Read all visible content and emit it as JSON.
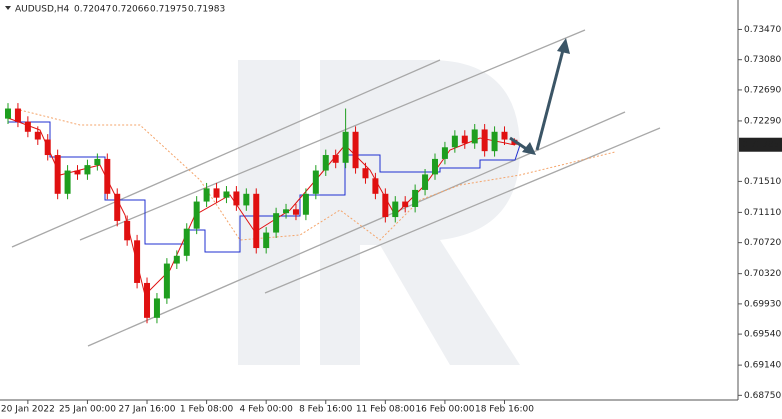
{
  "chart_data": {
    "type": "candlestick",
    "title": "AUDUSD,H4",
    "categories": [
      null,
      null,
      "20 Jan 2022",
      null,
      null,
      null,
      null,
      null,
      "25 Jan 00:00",
      null,
      null,
      null,
      null,
      null,
      "27 Jan 16:00",
      null,
      null,
      null,
      null,
      null,
      "1 Feb 08:00",
      null,
      null,
      null,
      null,
      null,
      "4 Feb 00:00",
      null,
      null,
      null,
      null,
      null,
      "8 Feb 16:00",
      null,
      null,
      null,
      null,
      null,
      "11 Feb 08:00",
      null,
      null,
      null,
      null,
      null,
      "16 Feb 00:00",
      null,
      null,
      null,
      null,
      null,
      "18 Feb 16:00",
      null
    ],
    "open": [
      0.7232,
      0.7245,
      0.7228,
      0.7215,
      0.7205,
      0.7185,
      0.7135,
      0.7165,
      0.716,
      0.7172,
      0.718,
      0.7135,
      0.71,
      0.7075,
      0.702,
      0.6975,
      0.7,
      0.7045,
      0.7055,
      0.709,
      0.7125,
      0.7142,
      0.713,
      0.7138,
      0.712,
      0.7135,
      0.7065,
      0.7085,
      0.711,
      0.7115,
      0.7108,
      0.7135,
      0.7165,
      0.7185,
      0.7175,
      0.7215,
      0.7168,
      0.7155,
      0.7135,
      0.7105,
      0.7125,
      0.7118,
      0.714,
      0.716,
      0.718,
      0.7195,
      0.721,
      0.72,
      0.7218,
      0.719,
      0.7215,
      0.72047
    ],
    "high": [
      0.7252,
      0.7252,
      0.7235,
      0.7222,
      0.7212,
      0.7192,
      0.7172,
      0.7172,
      0.7179,
      0.7187,
      0.7187,
      0.7142,
      0.7107,
      0.7082,
      0.7027,
      0.7007,
      0.7052,
      0.7062,
      0.7097,
      0.7132,
      0.7149,
      0.7149,
      0.7145,
      0.7145,
      0.7142,
      0.7142,
      0.7092,
      0.7117,
      0.7122,
      0.7122,
      0.7142,
      0.7172,
      0.7192,
      0.7192,
      0.7245,
      0.7222,
      0.7175,
      0.7162,
      0.7142,
      0.7132,
      0.7132,
      0.7147,
      0.7167,
      0.7187,
      0.7202,
      0.7217,
      0.7217,
      0.7225,
      0.7225,
      0.7222,
      0.7222,
      0.72066
    ],
    "low": [
      0.7225,
      0.7221,
      0.7208,
      0.7198,
      0.7178,
      0.7128,
      0.7128,
      0.7153,
      0.7153,
      0.7165,
      0.7128,
      0.7093,
      0.7068,
      0.7013,
      0.6968,
      0.6968,
      0.6993,
      0.7038,
      0.7048,
      0.7083,
      0.7118,
      0.7123,
      0.7123,
      0.7113,
      0.7113,
      0.7058,
      0.7058,
      0.7078,
      0.7103,
      0.7101,
      0.7101,
      0.7128,
      0.7158,
      0.7168,
      0.7168,
      0.7161,
      0.7148,
      0.7128,
      0.7098,
      0.7098,
      0.7111,
      0.7111,
      0.7133,
      0.7153,
      0.7173,
      0.7188,
      0.7193,
      0.7193,
      0.7183,
      0.7183,
      0.7198,
      0.71975
    ],
    "close": [
      0.7245,
      0.7228,
      0.7215,
      0.7205,
      0.7185,
      0.7135,
      0.7165,
      0.716,
      0.7172,
      0.718,
      0.7135,
      0.71,
      0.7075,
      0.702,
      0.6975,
      0.7,
      0.7045,
      0.7055,
      0.709,
      0.7125,
      0.7142,
      0.713,
      0.7138,
      0.712,
      0.7135,
      0.7065,
      0.7085,
      0.711,
      0.7115,
      0.7108,
      0.7135,
      0.7165,
      0.7185,
      0.7175,
      0.7215,
      0.7168,
      0.7155,
      0.7135,
      0.7105,
      0.7125,
      0.7118,
      0.714,
      0.716,
      0.718,
      0.7195,
      0.721,
      0.72,
      0.7218,
      0.719,
      0.7215,
      0.7205,
      0.71983
    ],
    "up_color": "#1e9e1e",
    "down_color": "#e01010",
    "ylim": [
      0.6869,
      0.7385
    ],
    "yticks": [
      {
        "value": 0.7347,
        "label": "0.73470"
      },
      {
        "value": 0.7308,
        "label": "0.73080"
      },
      {
        "value": 0.7269,
        "label": "0.72690"
      },
      {
        "value": 0.7229,
        "label": "0.72290"
      },
      {
        "value": 0.7151,
        "label": "0.71510"
      },
      {
        "value": 0.7111,
        "label": "0.71110"
      },
      {
        "value": 0.7072,
        "label": "0.70720"
      },
      {
        "value": 0.7032,
        "label": "0.70320"
      },
      {
        "value": 0.6993,
        "label": "0.69930"
      },
      {
        "value": 0.6954,
        "label": "0.69540"
      },
      {
        "value": 0.6914,
        "label": "0.69140"
      },
      {
        "value": 0.6875,
        "label": "0.68750"
      }
    ]
  }
}
